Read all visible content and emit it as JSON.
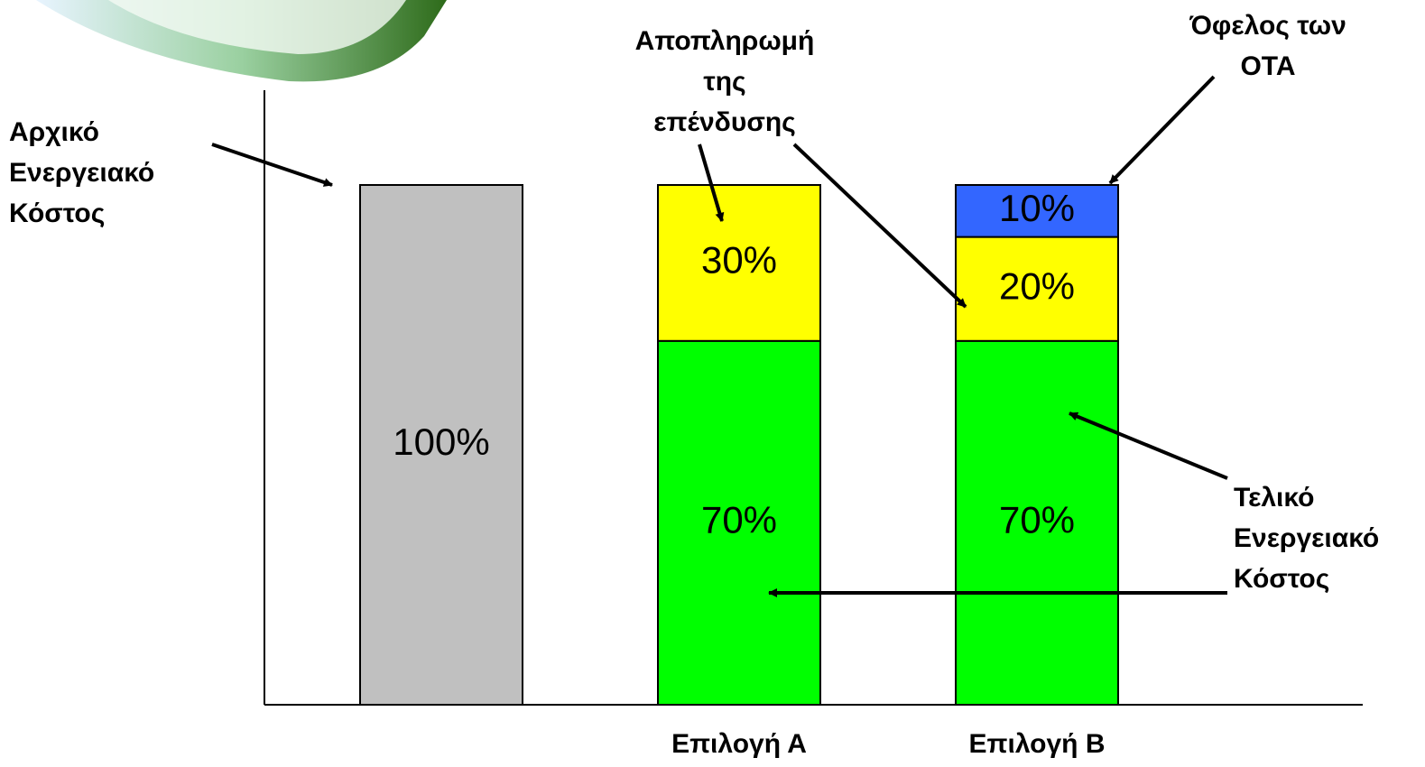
{
  "chart_data": {
    "type": "stacked-bar",
    "categories": [
      null,
      "Επιλογή Α",
      "Επιλογή Β"
    ],
    "series": [
      {
        "color": "#c0c0c0",
        "values": [
          100,
          null,
          null
        ],
        "value_labels": [
          "100%",
          null,
          null
        ]
      },
      {
        "color": "#00ff00",
        "values": [
          null,
          70,
          70
        ],
        "value_labels": [
          null,
          "70%",
          "70%"
        ]
      },
      {
        "color": "#ffff00",
        "values": [
          null,
          30,
          20
        ],
        "value_labels": [
          null,
          "30%",
          "20%"
        ]
      },
      {
        "color": "#3366ff",
        "values": [
          null,
          null,
          10
        ],
        "value_labels": [
          null,
          null,
          "10%"
        ]
      }
    ],
    "ylim": [
      0,
      100
    ],
    "annotations": [
      {
        "lines": [
          "Αρχικό",
          "Ενεργειακό",
          "Κόστος"
        ]
      },
      {
        "lines": [
          "Αποπληρωμή",
          "της",
          "επένδυσης"
        ]
      },
      {
        "lines": [
          "Όφελος των",
          "ΟΤΑ"
        ]
      },
      {
        "lines": [
          "Τελικό",
          "Ενεργειακό",
          "Κόστος"
        ]
      }
    ]
  }
}
